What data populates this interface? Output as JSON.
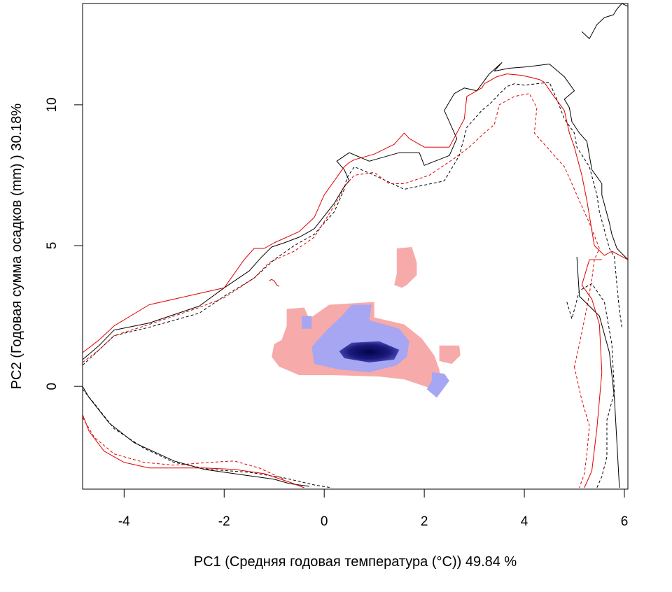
{
  "chart_data": {
    "type": "heatmap",
    "title": "",
    "xlabel": "PC1 (Средняя годовая температура (°C)) 49.84 %",
    "ylabel": "PC2 (Годовая сумма осадков  (mm) ) 30.18%",
    "xlim": [
      -4.83,
      6.07
    ],
    "ylim": [
      -3.65,
      13.6
    ],
    "x_ticks": [
      -4,
      -2,
      0,
      2,
      4,
      6
    ],
    "y_ticks": [
      0,
      5,
      10
    ],
    "x_tick_labels": [
      "-4",
      "-2",
      "0",
      "2",
      "4",
      "6"
    ],
    "y_tick_labels": [
      "0",
      "5",
      "10"
    ],
    "grid": false,
    "legend": "none",
    "colors": {
      "pink_area": "#f7aaaa",
      "blue_low": "#a6a6f2",
      "blue_high": "#03034d",
      "contour_black": "#000000",
      "contour_red": "#e00000"
    },
    "regions": {
      "pink": [
        [
          [
            -0.75,
            2.75
          ],
          [
            -0.4,
            2.8
          ],
          [
            -0.3,
            2.4
          ],
          [
            0.1,
            2.9
          ],
          [
            1.0,
            3.0
          ],
          [
            1.0,
            2.45
          ],
          [
            1.6,
            2.2
          ],
          [
            1.95,
            1.7
          ],
          [
            2.2,
            1.1
          ],
          [
            2.3,
            0.6
          ],
          [
            2.35,
            0.1
          ],
          [
            2.1,
            -0.05
          ],
          [
            1.6,
            0.25
          ],
          [
            1.1,
            0.35
          ],
          [
            0.2,
            0.4
          ],
          [
            -0.5,
            0.4
          ],
          [
            -0.9,
            0.7
          ],
          [
            -1.05,
            1.05
          ],
          [
            -1.0,
            1.5
          ],
          [
            -0.85,
            1.65
          ],
          [
            -0.75,
            2.15
          ]
        ],
        [
          [
            1.45,
            4.9
          ],
          [
            1.75,
            4.95
          ],
          [
            1.85,
            4.4
          ],
          [
            1.85,
            3.95
          ],
          [
            1.65,
            3.6
          ],
          [
            1.55,
            3.5
          ],
          [
            1.4,
            3.6
          ],
          [
            1.45,
            4.0
          ],
          [
            1.45,
            4.5
          ]
        ],
        [
          [
            2.3,
            1.45
          ],
          [
            2.7,
            1.45
          ],
          [
            2.72,
            1.1
          ],
          [
            2.55,
            0.8
          ],
          [
            2.3,
            0.9
          ]
        ]
      ],
      "blue": [
        [
          [
            -0.45,
            2.5
          ],
          [
            -0.25,
            2.5
          ],
          [
            -0.25,
            2.05
          ],
          [
            -0.45,
            2.05
          ]
        ],
        [
          [
            0.55,
            2.9
          ],
          [
            0.95,
            2.9
          ],
          [
            0.9,
            2.35
          ],
          [
            1.5,
            2.05
          ],
          [
            1.7,
            1.6
          ],
          [
            1.65,
            1.05
          ],
          [
            1.45,
            0.75
          ],
          [
            0.9,
            0.5
          ],
          [
            0.3,
            0.6
          ],
          [
            -0.2,
            0.8
          ],
          [
            -0.25,
            1.4
          ],
          [
            0.05,
            2.0
          ],
          [
            0.35,
            2.5
          ]
        ],
        [
          [
            2.15,
            0.5
          ],
          [
            2.4,
            0.45
          ],
          [
            2.5,
            0.2
          ],
          [
            2.25,
            -0.4
          ],
          [
            2.05,
            -0.1
          ],
          [
            2.15,
            0.2
          ]
        ]
      ],
      "blue_core": [
        [
          [
            0.55,
            1.55
          ],
          [
            1.1,
            1.6
          ],
          [
            1.5,
            1.3
          ],
          [
            1.4,
            0.95
          ],
          [
            0.9,
            0.85
          ],
          [
            0.4,
            1.0
          ],
          [
            0.3,
            1.25
          ]
        ]
      ]
    },
    "series": [
      {
        "color": "black",
        "linestyle": "solid",
        "x": [
          -4.83,
          -4.5,
          -4.2,
          -3.5,
          -2.5,
          -2.0,
          -1.5,
          -1.25,
          -1.05,
          -0.8,
          -0.5,
          -0.2,
          0.2,
          0.4,
          0.5,
          0.4,
          0.3,
          0.25,
          0.5,
          0.9,
          1.5,
          1.9,
          2.0,
          2.5,
          2.65,
          2.4,
          2.6,
          2.8,
          3.05,
          3.3,
          3.55,
          3.4,
          3.7,
          4.05,
          4.5,
          4.8,
          5.0,
          4.8,
          4.9,
          4.95,
          5.1,
          5.25,
          5.35,
          5.55,
          5.55,
          5.7,
          5.75,
          5.85,
          6.07
        ],
        "y": [
          0.95,
          1.45,
          2.0,
          2.25,
          2.85,
          3.5,
          4.1,
          4.6,
          4.95,
          5.1,
          5.3,
          5.6,
          6.5,
          7.1,
          7.3,
          7.7,
          7.9,
          8.0,
          8.3,
          8.0,
          8.3,
          8.3,
          7.85,
          8.2,
          8.8,
          9.8,
          10.4,
          10.6,
          10.5,
          11.1,
          11.5,
          11.2,
          11.3,
          11.35,
          11.45,
          11.0,
          10.5,
          10.2,
          9.9,
          9.4,
          9.0,
          8.7,
          7.7,
          7.2,
          6.8,
          5.8,
          5.4,
          4.9,
          4.5
        ]
      },
      {
        "color": "black",
        "linestyle": "solid",
        "x": [
          -4.83,
          -4.7,
          -4.3,
          -3.8,
          -3.0,
          -2.4,
          -1.6,
          -1.0,
          -0.7,
          -0.3
        ],
        "y": [
          0.0,
          -0.4,
          -1.3,
          -2.0,
          -2.65,
          -2.95,
          -3.15,
          -3.3,
          -3.45,
          -3.55
        ]
      },
      {
        "color": "black",
        "linestyle": "solid",
        "x": [
          5.05,
          5.1,
          5.3,
          5.5,
          5.7,
          5.8,
          5.9
        ],
        "y": [
          4.6,
          3.2,
          2.85,
          2.5,
          1.2,
          -0.4,
          -3.6
        ]
      },
      {
        "color": "black",
        "linestyle": "solid",
        "x": [
          5.15,
          5.3,
          5.45,
          5.6,
          5.78,
          5.85,
          5.95,
          6.07
        ],
        "y": [
          12.6,
          12.35,
          12.85,
          13.1,
          13.2,
          13.4,
          13.6,
          13.5
        ]
      },
      {
        "color": "black",
        "linestyle": "dashed",
        "x": [
          -4.83,
          -4.5,
          -4.2,
          -3.5,
          -2.5,
          -2.0,
          -1.4,
          -1.0,
          -0.6,
          -0.2,
          0.2,
          0.4,
          0.45,
          0.6,
          1.0,
          1.6,
          2.4,
          2.7,
          2.85,
          3.15,
          3.35,
          3.45,
          3.65,
          3.8,
          4.0,
          4.5,
          4.65,
          4.8,
          5.0,
          5.05,
          5.3,
          5.45,
          5.5,
          5.7,
          5.8,
          5.85,
          5.9,
          5.95
        ],
        "y": [
          0.75,
          1.3,
          1.8,
          2.1,
          2.6,
          3.2,
          3.85,
          4.5,
          5.0,
          5.4,
          6.2,
          7.0,
          7.4,
          7.8,
          7.5,
          7.0,
          7.3,
          8.2,
          9.2,
          9.8,
          10.1,
          10.3,
          10.65,
          10.75,
          10.7,
          10.8,
          10.2,
          9.5,
          9.0,
          8.5,
          7.8,
          6.8,
          6.2,
          4.9,
          4.6,
          3.6,
          2.7,
          2.1
        ]
      },
      {
        "color": "black",
        "linestyle": "dashed",
        "x": [
          -4.83,
          -4.6,
          -4.2,
          -3.6,
          -3.0,
          -2.3,
          -1.5,
          -0.8,
          -0.2,
          0.15
        ],
        "y": [
          -0.1,
          -0.6,
          -1.5,
          -2.2,
          -2.7,
          -2.95,
          -3.05,
          -3.25,
          -3.5,
          -3.6
        ]
      },
      {
        "color": "black",
        "linestyle": "dashed",
        "x": [
          4.85,
          4.95,
          5.1,
          5.35,
          5.6,
          5.75,
          5.8,
          5.65,
          5.65,
          5.55,
          5.45
        ],
        "y": [
          3.0,
          2.4,
          3.4,
          3.65,
          3.0,
          1.5,
          -0.2,
          -1.2,
          -2.5,
          -3.2,
          -3.6
        ]
      },
      {
        "color": "red",
        "linestyle": "solid",
        "x": [
          -4.83,
          -4.5,
          -4.2,
          -3.5,
          -2.5,
          -2.0,
          -1.6,
          -1.4,
          -1.2,
          -1.0,
          -0.5,
          -0.2,
          0.0,
          0.4,
          0.5,
          0.6,
          1.0,
          1.4,
          1.6,
          1.7,
          2.0,
          2.5,
          2.8,
          2.85,
          3.15,
          3.2,
          3.45,
          3.65,
          3.95,
          4.3,
          4.4,
          4.55,
          4.8,
          4.9,
          5.0,
          5.15,
          5.25,
          5.4,
          5.6,
          5.75,
          6.07
        ],
        "y": [
          1.2,
          1.65,
          2.15,
          2.9,
          3.3,
          3.5,
          4.5,
          4.9,
          4.9,
          5.1,
          5.5,
          6.0,
          6.8,
          7.8,
          7.95,
          8.05,
          8.25,
          8.6,
          9.0,
          8.8,
          8.5,
          8.5,
          9.5,
          10.3,
          10.6,
          10.75,
          11.0,
          11.1,
          11.05,
          10.9,
          10.8,
          10.4,
          9.8,
          9.0,
          8.5,
          7.5,
          6.6,
          5.0,
          4.65,
          4.8,
          4.5
        ]
      },
      {
        "color": "red",
        "linestyle": "solid",
        "x": [
          -4.83,
          -4.7,
          -4.4,
          -4.0,
          -3.5,
          -3.0,
          -2.4,
          -1.8,
          -1.2,
          -0.7,
          -0.4
        ],
        "y": [
          -1.0,
          -1.6,
          -2.3,
          -2.7,
          -2.9,
          -2.9,
          -2.9,
          -2.95,
          -3.1,
          -3.4,
          -3.6
        ]
      },
      {
        "color": "red",
        "linestyle": "solid",
        "x": [
          5.55,
          5.3,
          5.15,
          5.35,
          5.5,
          5.55,
          5.45,
          5.35,
          5.2
        ],
        "y": [
          4.5,
          4.5,
          3.6,
          3.1,
          2.2,
          0.5,
          -1.5,
          -3.0,
          -3.6
        ]
      },
      {
        "color": "red",
        "linestyle": "dashed",
        "x": [
          -4.83,
          -4.5,
          -4.2,
          -3.5,
          -2.5,
          -2.0,
          -1.4,
          -1.1,
          -0.6,
          -0.2,
          0.0,
          0.3,
          0.4,
          0.6,
          1.0,
          1.3,
          1.6,
          2.1,
          2.6,
          2.9,
          3.2,
          3.4,
          3.5,
          3.8,
          4.1,
          4.25,
          4.2,
          4.45,
          4.8,
          5.0,
          5.15,
          5.3,
          5.5,
          5.4,
          5.35,
          5.25,
          5.1,
          5.0
        ],
        "y": [
          0.85,
          1.3,
          1.8,
          2.2,
          2.8,
          3.15,
          3.85,
          4.4,
          4.8,
          5.3,
          5.85,
          6.7,
          7.1,
          7.5,
          7.6,
          7.2,
          7.2,
          7.5,
          8.1,
          8.5,
          9.0,
          9.3,
          10.0,
          10.3,
          10.4,
          9.9,
          9.0,
          8.5,
          7.8,
          7.0,
          6.4,
          5.8,
          4.9,
          4.5,
          3.8,
          2.8,
          1.5,
          0.7
        ]
      },
      {
        "color": "red",
        "linestyle": "dashed",
        "x": [
          -4.83,
          -4.6,
          -4.2,
          -3.6,
          -3.0,
          -2.3,
          -1.8,
          -1.3,
          -0.8
        ],
        "y": [
          -1.1,
          -1.8,
          -2.4,
          -2.7,
          -2.8,
          -2.7,
          -2.65,
          -2.9,
          -3.3
        ]
      },
      {
        "color": "red",
        "linestyle": "dashed",
        "x": [
          5.0,
          5.15,
          5.3,
          5.25,
          5.2,
          5.1
        ],
        "y": [
          0.7,
          -0.5,
          -1.4,
          -2.4,
          -3.1,
          -3.6
        ]
      },
      {
        "color": "red",
        "linestyle": "solid",
        "x": [
          -1.1,
          -1.05,
          -1.0,
          -0.95,
          -0.9
        ],
        "y": [
          3.75,
          3.8,
          3.75,
          3.6,
          3.55
        ]
      }
    ]
  }
}
